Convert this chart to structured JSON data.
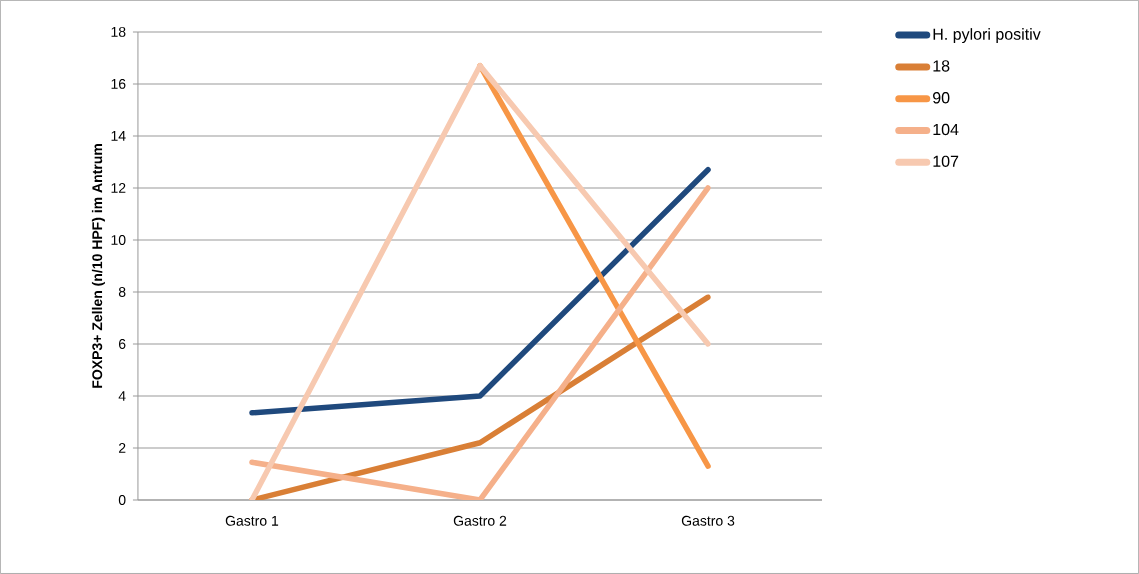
{
  "chart_data": {
    "type": "line",
    "ylabel": "FOXP3+ Zellen (n/10 HPF) im Antrum",
    "categories": [
      "Gastro 1",
      "Gastro 2",
      "Gastro 3"
    ],
    "series": [
      {
        "name": "H. pylori positiv",
        "color": "#1f497d",
        "values": [
          3.35,
          4.0,
          12.7
        ]
      },
      {
        "name": "18",
        "color": "#d97f36",
        "values": [
          0,
          2.2,
          7.8
        ]
      },
      {
        "name": "90",
        "color": "#f79646",
        "values": [
          null,
          16.7,
          1.3
        ]
      },
      {
        "name": "104",
        "color": "#f5b08a",
        "values": [
          1.45,
          0,
          12.0
        ]
      },
      {
        "name": "107",
        "color": "#f7c9b0",
        "values": [
          0,
          16.7,
          6.0
        ]
      }
    ],
    "ylim": [
      0,
      18
    ],
    "yticks": [
      0,
      2,
      4,
      6,
      8,
      10,
      12,
      14,
      16,
      18
    ],
    "grid": "y",
    "legend": "right"
  }
}
